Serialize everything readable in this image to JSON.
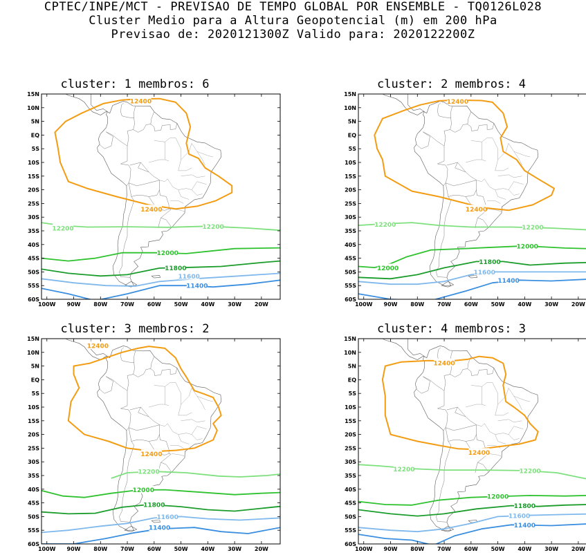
{
  "header": {
    "line1": "CPTEC/INPE/MCT - PREVISAO DE TEMPO GLOBAL POR ENSEMBLE - TQ0126L028",
    "line2": "Cluster Medio para a Altura Geopotencial (m) em 200 hPa",
    "line3": "Previsao de: 2020121300Z    Valido para: 2020122200Z"
  },
  "axes": {
    "lat_labels": [
      "15N",
      "10N",
      "5N",
      "EQ",
      "5S",
      "10S",
      "15S",
      "20S",
      "25S",
      "30S",
      "35S",
      "40S",
      "45S",
      "50S",
      "55S",
      "60S"
    ],
    "lon_labels": [
      "100W",
      "90W",
      "80W",
      "70W",
      "60W",
      "50W",
      "40W",
      "30W",
      "20W"
    ]
  },
  "contour_levels": [
    {
      "value": "12400",
      "color": "#f39c12"
    },
    {
      "value": "12200",
      "color": "#7de07d"
    },
    {
      "value": "12000",
      "color": "#2ec22e"
    },
    {
      "value": "11800",
      "color": "#1a9c2a"
    },
    {
      "value": "11600",
      "color": "#7fb8ec"
    },
    {
      "value": "11400",
      "color": "#3a8ee0"
    }
  ],
  "panels": [
    {
      "title": "cluster: 1   membros: 6"
    },
    {
      "title": "cluster: 2   membros: 4"
    },
    {
      "title": "cluster: 3   membros: 2"
    },
    {
      "title": "cluster: 4   membros: 3"
    }
  ]
}
